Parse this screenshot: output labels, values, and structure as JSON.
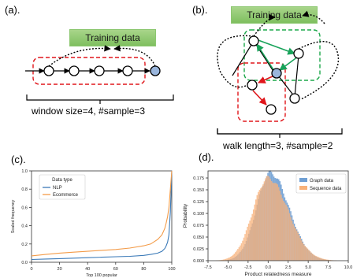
{
  "panels": {
    "a": {
      "label": "(a).",
      "training_label": "Training data",
      "caption": "window size=4, #sample=3"
    },
    "b": {
      "label": "(b).",
      "training_label": "Training data",
      "caption": "walk length=3, #sample=2"
    },
    "c": {
      "label": "(c)."
    },
    "d": {
      "label": "(d)."
    }
  },
  "colors": {
    "node_highlight": "#9ab6dd",
    "red_dashed": "#e0161b",
    "green_dashed": "#1ca84a",
    "green_arrow": "#18a35a",
    "red_arrow": "#e0161b",
    "nlp_line": "#3b7ab8",
    "ecommerce_line": "#f39b48",
    "graph_hist": "#6f9fd3",
    "sequence_hist": "#f8b27a"
  },
  "chart_data": [
    {
      "type": "line",
      "legend_title": "Data type",
      "legend_placement": "top-left",
      "xlabel": "Top 100 popular",
      "ylabel": "Scaled frequency",
      "xlim": [
        0,
        100
      ],
      "ylim": [
        0,
        1.0
      ],
      "xticks": [
        "0",
        "20",
        "40",
        "60",
        "80",
        "100"
      ],
      "yticks": [
        "0.0",
        "0.2",
        "0.4",
        "0.6",
        "0.8",
        "1.0"
      ],
      "x": [
        0,
        10,
        20,
        30,
        40,
        50,
        60,
        70,
        80,
        85,
        90,
        93,
        95,
        96,
        97,
        98,
        99,
        100
      ],
      "series": [
        {
          "name": "NLP",
          "color": "#3b7ab8",
          "values": [
            0.03,
            0.035,
            0.04,
            0.045,
            0.05,
            0.055,
            0.06,
            0.065,
            0.075,
            0.085,
            0.1,
            0.12,
            0.15,
            0.18,
            0.22,
            0.3,
            0.55,
            1.0
          ]
        },
        {
          "name": "Ecommerce",
          "color": "#f39b48",
          "values": [
            0.07,
            0.085,
            0.1,
            0.11,
            0.12,
            0.13,
            0.14,
            0.155,
            0.18,
            0.2,
            0.25,
            0.3,
            0.37,
            0.43,
            0.5,
            0.6,
            0.8,
            1.0
          ]
        }
      ]
    },
    {
      "type": "histogram",
      "legend_placement": "top-right",
      "xlabel": "Product relatedness measure",
      "ylabel": "Probability",
      "xlim": [
        -7.5,
        10.0
      ],
      "ylim": [
        0,
        0.19
      ],
      "xticks": [
        "-7.5",
        "-5.0",
        "-2.5",
        "0.0",
        "2.5",
        "5.0",
        "7.5",
        "10.0"
      ],
      "yticks": [
        "0.000",
        "0.025",
        "0.050",
        "0.075",
        "0.100",
        "0.125",
        "0.150",
        "0.175"
      ],
      "series": [
        {
          "name": "Graph data",
          "color": "#6f9fd3",
          "mean": 0.3,
          "sigma_left": 1.75,
          "sigma_right": 2.3,
          "peak": 0.186
        },
        {
          "name": "Sequence data",
          "color": "#f8b27a",
          "mean": 0.0,
          "sigma_left": 1.9,
          "sigma_right": 2.5,
          "peak": 0.175
        }
      ]
    }
  ]
}
